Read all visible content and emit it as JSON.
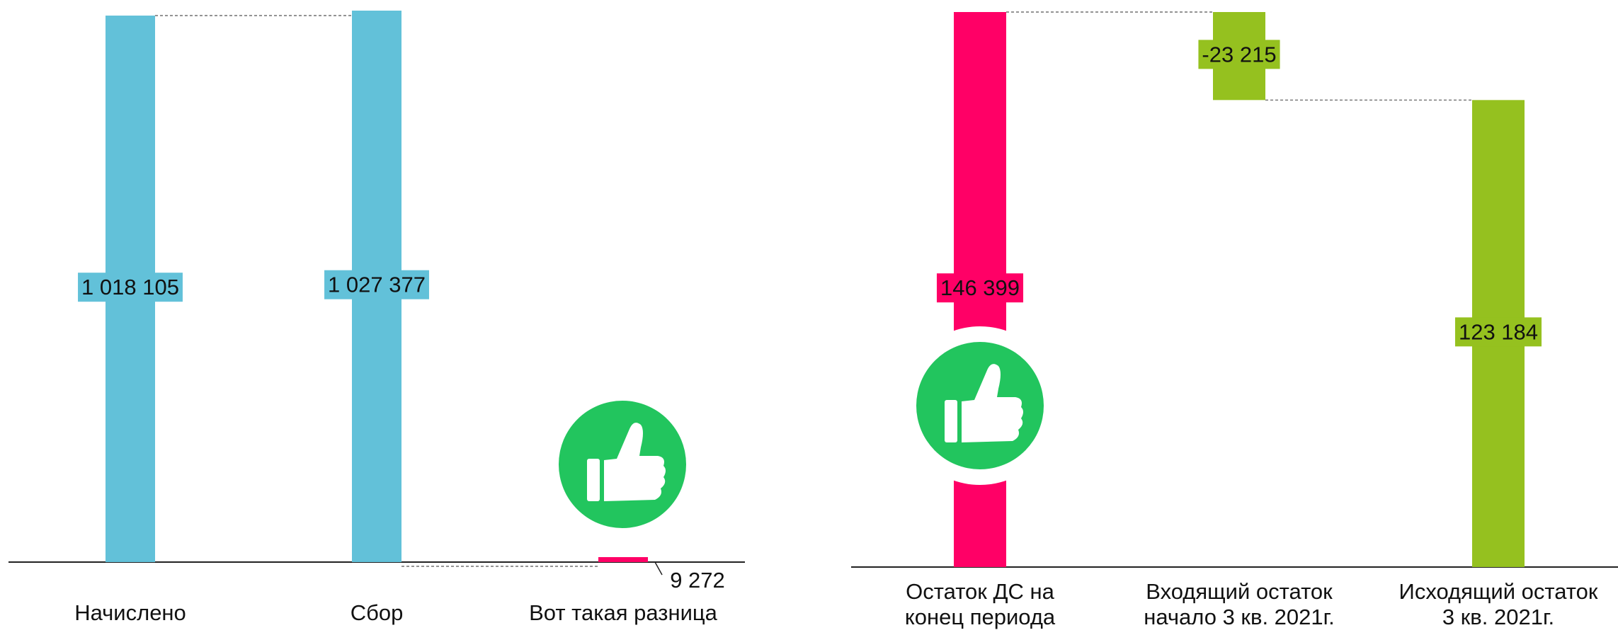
{
  "chart_data": [
    {
      "type": "bar",
      "categories": [
        "Начислено",
        "Сбор",
        "Вот такая разница"
      ],
      "values": [
        1018105,
        1027377,
        9272
      ],
      "value_labels": [
        "1 018 105",
        "1 027 377",
        "9 272"
      ],
      "colors": [
        "#62c1d9",
        "#62c1d9",
        "#ff0066"
      ]
    },
    {
      "type": "waterfall",
      "categories": [
        [
          "Остаток ДС на",
          "конец  периода"
        ],
        [
          "Входящий  остаток",
          "начало 3 кв. 2021г."
        ],
        [
          "Исходящий остаток",
          "3 кв. 2021г."
        ]
      ],
      "values": [
        146399,
        -23215,
        123184
      ],
      "value_labels": [
        "146 399",
        "-23 215",
        "123 184"
      ],
      "colors": [
        "#ff0066",
        "#95c11f",
        "#95c11f"
      ]
    }
  ]
}
